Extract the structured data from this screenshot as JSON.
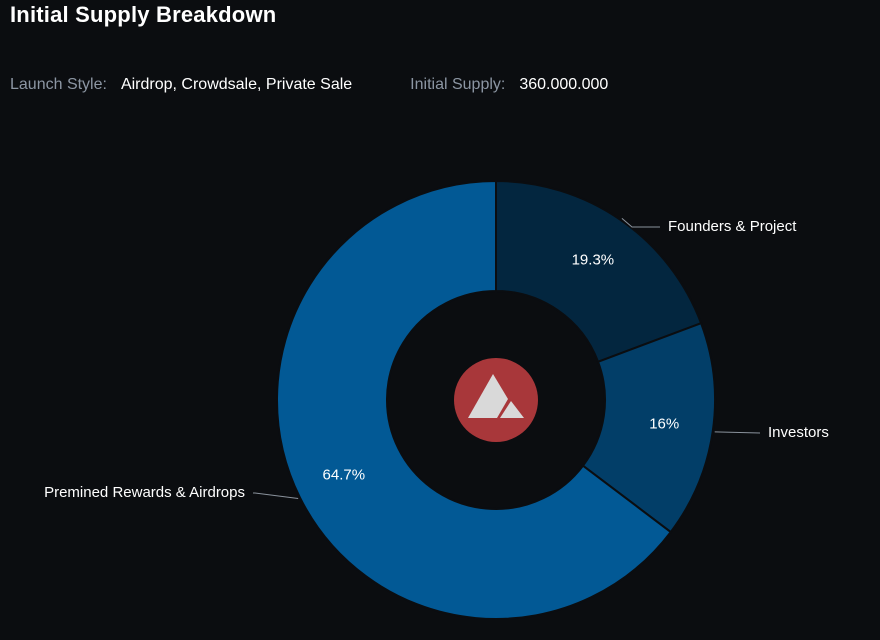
{
  "header": {
    "title": "Initial Supply Breakdown"
  },
  "info": {
    "launch_style_label": "Launch Style:",
    "launch_style_value": "Airdrop, Crowdsale, Private Sale",
    "initial_supply_label": "Initial Supply:",
    "initial_supply_value": "360.000.000"
  },
  "center_logo": {
    "icon": "avalanche-logo-icon",
    "color": "#a8373a"
  },
  "chart_data": {
    "type": "pie",
    "donut": true,
    "title": "",
    "categories": [
      "Founders & Project",
      "Investors",
      "Premined Rewards & Airdrops"
    ],
    "values": [
      19.3,
      16,
      64.7
    ],
    "data_labels": [
      "19.3%",
      "16%",
      "64.7%"
    ],
    "colors": [
      "#03263f",
      "#023e68",
      "#025995"
    ],
    "legend": "none"
  }
}
